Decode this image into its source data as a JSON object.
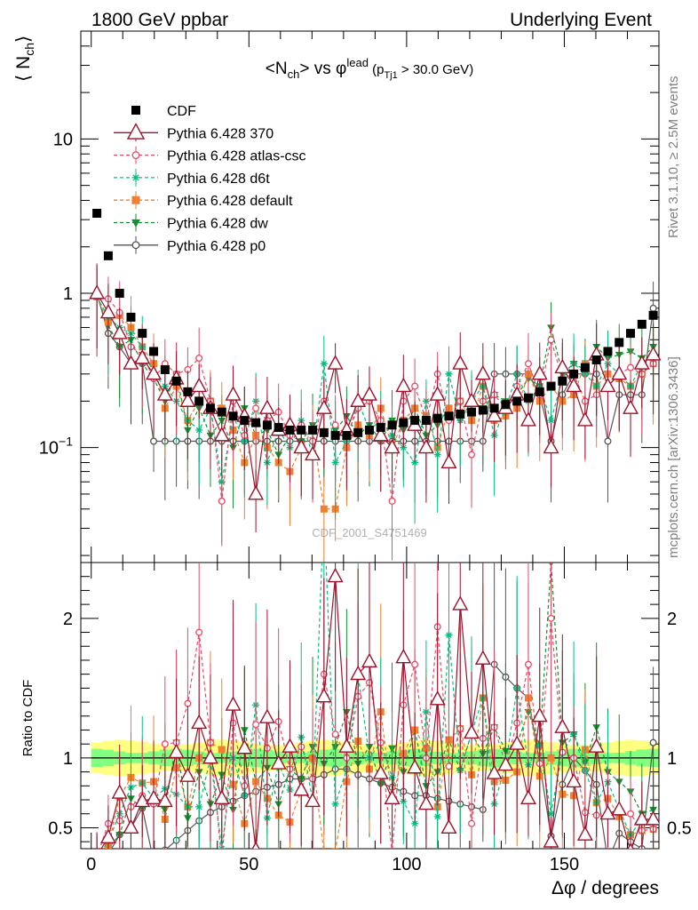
{
  "header": {
    "left": "1800 GeV ppbar",
    "right": "Underlying Event"
  },
  "side_text": {
    "rivet": "Rivet 3.1.10, ≥ 2.5M events",
    "mcplots": "mcplots.cern.ch [arXiv:1306.3436]"
  },
  "watermark": "CDF_2001_S4751469",
  "chart_data": [
    {
      "type": "scatter",
      "title_main": "<N",
      "title_sub1": "ch",
      "title_mid": "> vs φ",
      "title_sup": "lead",
      "title_paren_open": " (p",
      "title_sub2": "Tj1",
      "title_tail": " > 30.0 GeV)",
      "ylabel": "⟨ N",
      "ylabel_sub": "ch",
      "ylabel_close": "⟩",
      "yscale": "log",
      "ylim": [
        0.018,
        50
      ],
      "xlim": [
        -3.3,
        180
      ],
      "yticks": [
        {
          "value": 10,
          "label": "10"
        },
        {
          "value": 1,
          "label": "1"
        },
        {
          "value": 0.1,
          "label": "10",
          "sup": "−1"
        }
      ],
      "legend_position": "top-left",
      "x": [
        1.8,
        5.4,
        9,
        12.6,
        16.2,
        19.8,
        23.4,
        27,
        30.6,
        34.2,
        37.8,
        41.4,
        45,
        48.6,
        52.2,
        55.8,
        59.4,
        63,
        66.6,
        70.2,
        73.8,
        77.4,
        81,
        84.6,
        88.2,
        91.8,
        95.4,
        99,
        102.6,
        106.2,
        109.8,
        113.4,
        117,
        120.6,
        124.2,
        127.8,
        131.4,
        135,
        138.6,
        142.2,
        145.8,
        149.4,
        153,
        156.6,
        160.2,
        163.8,
        167.4,
        171,
        174.6,
        178.2
      ],
      "series": [
        {
          "name": "CDF",
          "color": "#000000",
          "marker": "square",
          "values": [
            3.3,
            1.75,
            1.0,
            0.7,
            0.55,
            0.42,
            0.32,
            0.27,
            0.23,
            0.2,
            0.18,
            0.17,
            0.16,
            0.15,
            0.145,
            0.14,
            0.135,
            0.13,
            0.13,
            0.13,
            0.125,
            0.12,
            0.12,
            0.125,
            0.13,
            0.135,
            0.14,
            0.145,
            0.15,
            0.15,
            0.155,
            0.16,
            0.165,
            0.17,
            0.175,
            0.18,
            0.19,
            0.2,
            0.21,
            0.23,
            0.25,
            0.27,
            0.3,
            0.33,
            0.37,
            0.42,
            0.48,
            0.55,
            0.63,
            0.72
          ],
          "ratio": [
            1,
            1,
            1,
            1,
            1,
            1,
            1,
            1,
            1,
            1,
            1,
            1,
            1,
            1,
            1,
            1,
            1,
            1,
            1,
            1,
            1,
            1,
            1,
            1,
            1,
            1,
            1,
            1,
            1,
            1,
            1,
            1,
            1,
            1,
            1,
            1,
            1,
            1,
            1,
            1,
            1,
            1,
            1,
            1,
            1,
            1,
            1,
            1,
            1,
            1
          ]
        },
        {
          "name": "Pythia 6.428 370",
          "color": "#a0102a",
          "marker": "triangle",
          "values": [
            1.0,
            0.75,
            0.55,
            0.35,
            0.38,
            0.3,
            0.22,
            0.28,
            0.2,
            0.25,
            0.18,
            0.12,
            0.22,
            0.16,
            0.05,
            0.18,
            0.13,
            0.14,
            0.1,
            0.09,
            0.18,
            0.35,
            0.13,
            0.2,
            0.22,
            0.12,
            0.1,
            0.25,
            0.14,
            0.1,
            0.22,
            0.08,
            0.35,
            0.2,
            0.3,
            0.16,
            0.18,
            0.22,
            0.15,
            0.3,
            0.1,
            0.33,
            0.25,
            0.15,
            0.4,
            0.25,
            0.3,
            0.18,
            0.35,
            0.4
          ],
          "ratio": [
            0.3,
            0.43,
            0.75,
            0.5,
            0.69,
            0.71,
            0.69,
            1.04,
            0.87,
            1.25,
            1.0,
            0.71,
            1.38,
            1.07,
            0.34,
            1.29,
            0.96,
            1.08,
            0.77,
            0.69,
            1.44,
            2.3,
            1.08,
            1.6,
            1.69,
            0.89,
            0.71,
            1.72,
            0.93,
            0.67,
            1.42,
            0.5,
            2.1,
            1.18,
            1.71,
            0.89,
            0.95,
            1.1,
            0.71,
            1.3,
            0.4,
            1.22,
            0.83,
            0.45,
            1.08,
            0.6,
            0.63,
            0.33,
            0.56,
            0.56
          ]
        },
        {
          "name": "Pythia 6.428 atlas-csc",
          "color": "#e84a66",
          "marker": "circle-open",
          "dashed": true,
          "values": [
            0.95,
            0.92,
            0.75,
            0.45,
            0.4,
            0.28,
            0.35,
            0.3,
            0.32,
            0.38,
            0.2,
            0.045,
            0.2,
            0.12,
            0.18,
            0.15,
            0.17,
            0.12,
            0.14,
            0.11,
            0.2,
            0.14,
            0.12,
            0.18,
            0.2,
            0.15,
            0.045,
            0.2,
            0.25,
            0.15,
            0.3,
            0.15,
            0.2,
            0.09,
            0.2,
            0.22,
            0.18,
            0.25,
            0.35,
            0.22,
            0.5,
            0.28,
            0.3,
            0.2,
            0.22,
            0.25,
            0.3,
            0.33,
            0.3,
            0.35
          ],
          "ratio": [
            0.29,
            0.53,
            0.55,
            0.65,
            0.73,
            0.67,
            1.1,
            1.11,
            1.39,
            1.9,
            1.11,
            0.26,
            1.25,
            0.8,
            1.24,
            1.07,
            1.26,
            0.92,
            1.08,
            0.85,
            1.6,
            1.17,
            1.0,
            1.44,
            1.54,
            1.11,
            0.32,
            1.38,
            1.67,
            1.0,
            1.94,
            0.94,
            1.21,
            0.53,
            1.14,
            1.22,
            0.95,
            1.25,
            1.67,
            0.96,
            2.0,
            1.04,
            1.0,
            0.61,
            0.59,
            0.6,
            0.63,
            0.6,
            0.48,
            0.49
          ]
        },
        {
          "name": "Pythia 6.428 d6t",
          "color": "#00c080",
          "marker": "star",
          "dashed": true,
          "values": [
            0.95,
            0.7,
            0.6,
            0.55,
            0.45,
            0.3,
            0.25,
            0.2,
            0.15,
            0.13,
            0.18,
            0.06,
            0.16,
            0.11,
            0.2,
            0.08,
            0.13,
            0.1,
            0.15,
            0.09,
            0.35,
            0.08,
            0.11,
            0.2,
            0.13,
            0.15,
            0.12,
            0.1,
            0.08,
            0.2,
            0.09,
            0.3,
            0.15,
            0.2,
            0.25,
            0.12,
            0.18,
            0.3,
            0.2,
            0.25,
            0.15,
            0.28,
            0.35,
            0.3,
            0.25,
            0.35,
            0.3,
            0.25,
            0.35,
            0.4
          ],
          "ratio": [
            0.29,
            0.4,
            0.6,
            0.79,
            0.82,
            0.71,
            0.78,
            0.74,
            0.65,
            0.65,
            1.0,
            0.35,
            1.0,
            0.73,
            1.38,
            0.57,
            0.96,
            0.77,
            1.15,
            0.69,
            2.8,
            0.67,
            0.92,
            1.6,
            1.0,
            1.11,
            0.86,
            0.69,
            0.53,
            1.33,
            0.58,
            1.88,
            0.91,
            1.18,
            1.43,
            0.67,
            0.95,
            1.5,
            0.95,
            1.09,
            0.6,
            1.04,
            1.17,
            0.91,
            0.68,
            0.83,
            0.63,
            0.45,
            0.56,
            0.56
          ]
        },
        {
          "name": "Pythia 6.428 default",
          "color": "#f07f2e",
          "marker": "square",
          "dashed": true,
          "values": [
            0.95,
            0.65,
            0.72,
            0.6,
            0.45,
            0.35,
            0.18,
            0.25,
            0.15,
            0.2,
            0.2,
            0.18,
            0.13,
            0.08,
            0.12,
            0.1,
            0.08,
            0.07,
            0.1,
            0.13,
            0.04,
            0.04,
            0.1,
            0.14,
            0.12,
            0.18,
            0.1,
            0.15,
            0.18,
            0.16,
            0.1,
            0.18,
            0.2,
            0.15,
            0.25,
            0.15,
            0.16,
            0.18,
            0.3,
            0.2,
            0.25,
            0.2,
            0.22,
            0.35,
            0.25,
            0.3,
            0.28,
            0.25,
            0.3,
            0.35
          ],
          "ratio": [
            0.29,
            0.37,
            0.72,
            0.86,
            0.82,
            0.83,
            0.56,
            0.93,
            0.65,
            1.0,
            1.11,
            1.06,
            0.81,
            0.53,
            0.83,
            0.71,
            0.59,
            0.54,
            0.77,
            1.0,
            0.32,
            0.33,
            0.83,
            1.12,
            0.92,
            1.33,
            0.71,
            1.03,
            1.2,
            1.07,
            0.65,
            1.13,
            1.21,
            0.88,
            1.43,
            0.83,
            0.84,
            0.9,
            1.43,
            0.87,
            1.0,
            0.74,
            0.73,
            1.06,
            0.68,
            0.71,
            0.58,
            0.45,
            0.48,
            0.49
          ]
        },
        {
          "name": "Pythia 6.428 dw",
          "color": "#109030",
          "marker": "triangle-down",
          "dashed": true,
          "values": [
            0.95,
            0.62,
            0.45,
            0.5,
            0.35,
            0.28,
            0.2,
            0.3,
            0.13,
            0.18,
            0.12,
            0.15,
            0.1,
            0.18,
            0.12,
            0.13,
            0.09,
            0.12,
            0.11,
            0.14,
            0.12,
            0.13,
            0.16,
            0.12,
            0.14,
            0.11,
            0.15,
            0.13,
            0.18,
            0.12,
            0.14,
            0.18,
            0.15,
            0.2,
            0.18,
            0.22,
            0.2,
            0.22,
            0.28,
            0.25,
            0.6,
            0.3,
            0.35,
            0.32,
            0.45,
            0.38,
            0.4,
            0.42,
            0.38,
            0.45
          ],
          "ratio": [
            0.29,
            0.35,
            0.45,
            0.71,
            0.64,
            0.67,
            0.63,
            1.11,
            0.57,
            0.9,
            0.67,
            0.88,
            0.63,
            1.2,
            0.83,
            0.93,
            0.67,
            0.92,
            0.85,
            1.08,
            0.96,
            1.08,
            1.33,
            0.96,
            1.08,
            0.81,
            1.07,
            0.9,
            1.2,
            0.8,
            0.9,
            1.13,
            0.91,
            1.18,
            1.03,
            1.22,
            1.05,
            1.1,
            1.33,
            1.09,
            2.4,
            1.11,
            1.17,
            0.97,
            1.22,
            0.9,
            0.83,
            0.76,
            0.6,
            0.63
          ]
        },
        {
          "name": "Pythia 6.428 p0",
          "color": "#555555",
          "marker": "circle-open",
          "values": [
            1.0,
            0.55,
            0.45,
            0.35,
            0.35,
            0.11,
            0.11,
            0.11,
            0.11,
            0.11,
            0.11,
            0.11,
            0.11,
            0.11,
            0.11,
            0.11,
            0.11,
            0.11,
            0.11,
            0.11,
            0.11,
            0.11,
            0.11,
            0.11,
            0.11,
            0.11,
            0.11,
            0.11,
            0.11,
            0.11,
            0.11,
            0.11,
            0.11,
            0.11,
            0.11,
            0.3,
            0.3,
            0.3,
            0.3,
            0.22,
            0.11,
            0.22,
            0.3,
            0.3,
            0.3,
            0.11,
            0.22,
            0.22,
            0.22,
            0.8
          ],
          "ratio": [
            0.3,
            0.31,
            0.45,
            0.5,
            0.64,
            0.26,
            0.34,
            0.41,
            0.48,
            0.55,
            0.61,
            0.65,
            0.69,
            0.73,
            0.76,
            0.79,
            0.81,
            0.85,
            0.85,
            0.85,
            0.88,
            0.92,
            0.92,
            0.88,
            0.85,
            0.82,
            0.79,
            0.76,
            0.73,
            0.73,
            0.71,
            0.69,
            0.67,
            0.65,
            0.63,
            1.67,
            1.58,
            1.5,
            1.43,
            0.96,
            0.44,
            0.81,
            1.0,
            0.91,
            0.81,
            0.26,
            0.46,
            0.4,
            0.35,
            1.11
          ]
        }
      ]
    },
    {
      "type": "scatter",
      "ylabel": "Ratio to CDF",
      "xlabel": "Δφ / degrees",
      "ylim": [
        0.35,
        2.4
      ],
      "xlim": [
        -3.3,
        180
      ],
      "yticks": [
        {
          "value": 0.5,
          "label": "0.5"
        },
        {
          "value": 1,
          "label": "1"
        },
        {
          "value": 2,
          "label": "2"
        }
      ],
      "xticks": [
        {
          "value": 0,
          "label": "0"
        },
        {
          "value": 50,
          "label": "50"
        },
        {
          "value": 100,
          "label": "100"
        },
        {
          "value": 150,
          "label": "150"
        }
      ],
      "band_colors": {
        "outer": "#ffff80",
        "inner": "#80ff80"
      }
    }
  ]
}
